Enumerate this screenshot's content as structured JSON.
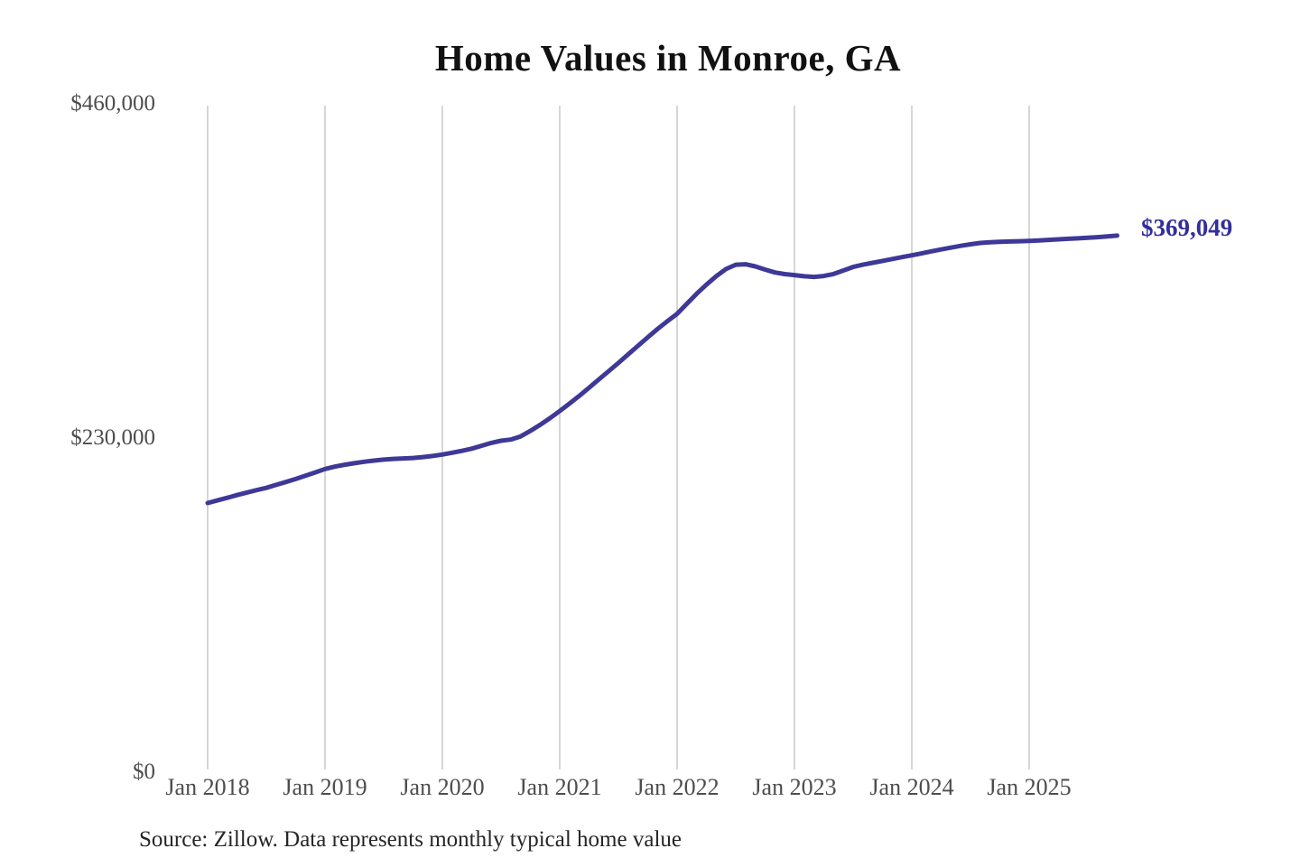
{
  "title": "Home Values in Monroe, GA",
  "source_note": "Source: Zillow. Data represents monthly typical home value",
  "end_label": "$369,049",
  "colors": {
    "line": "#3e3897",
    "end_label": "#322e9c",
    "gridline": "#c9c9c9",
    "axis_text": "#4d4d4d",
    "title_text": "#111111",
    "source_text": "#262626",
    "background": "#ffffff"
  },
  "chart_data": {
    "type": "line",
    "title": "Home Values in Monroe, GA",
    "xlabel": "",
    "ylabel": "",
    "ylim": [
      0,
      460000
    ],
    "y_ticks": [
      460000,
      230000,
      0
    ],
    "y_tick_labels": [
      "$460,000",
      "$230,000",
      "$0"
    ],
    "x_tick_labels": [
      "Jan 2018",
      "Jan 2019",
      "Jan 2020",
      "Jan 2021",
      "Jan 2022",
      "Jan 2023",
      "Jan 2024",
      "Jan 2025"
    ],
    "x_start": "2018-01",
    "x_end": "2025-10",
    "grid": "vertical-only",
    "legend": "none",
    "end_value": 369049,
    "end_value_label": "$369,049",
    "series": [
      {
        "name": "Monthly typical home value",
        "values": [
          184500,
          186300,
          188100,
          190000,
          191700,
          193400,
          195000,
          197000,
          199000,
          201100,
          203300,
          205600,
          208000,
          209600,
          210900,
          212000,
          213000,
          213800,
          214500,
          215000,
          215300,
          215600,
          216200,
          217000,
          218000,
          219200,
          220500,
          222000,
          224000,
          226000,
          227500,
          228300,
          230500,
          234300,
          238500,
          243100,
          248000,
          253100,
          258500,
          264100,
          269800,
          275500,
          281200,
          287100,
          293000,
          298900,
          304600,
          310000,
          315100,
          322000,
          329000,
          335200,
          341000,
          346000,
          349000,
          349300,
          347800,
          345600,
          343600,
          342500,
          341800,
          341000,
          340600,
          341200,
          342600,
          345000,
          347400,
          349000,
          350300,
          351600,
          352900,
          354200,
          355500,
          356800,
          358200,
          359500,
          360800,
          362000,
          363100,
          364000,
          364500,
          364800,
          365000,
          365200,
          365400,
          365700,
          366100,
          366500,
          366900,
          367200,
          367600,
          368000,
          368500,
          369049
        ]
      }
    ]
  }
}
